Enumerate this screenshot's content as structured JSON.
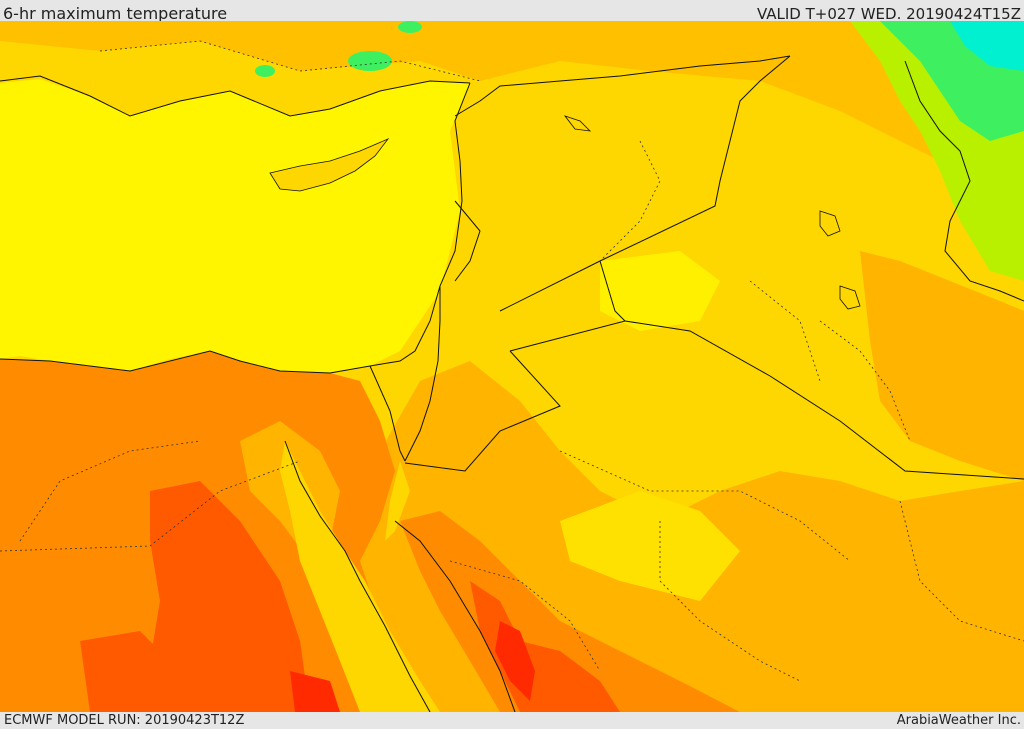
{
  "header": {
    "title": "6-hr maximum temperature",
    "valid_time": "VALID T+027 WED. 20190424T15Z"
  },
  "footer": {
    "model_run": "ECMWF MODEL RUN: 20190423T12Z",
    "credit": "ArabiaWeather Inc."
  },
  "map": {
    "colors": {
      "sea_yellow": "#fff500",
      "light_orange": "#ffd700",
      "mid_orange": "#ffb400",
      "orange": "#ff8c00",
      "dark_orange": "#ff5a00",
      "red": "#ff2a00",
      "green": "#b8f000",
      "bright_green": "#3ef060",
      "cyan": "#00f0d0",
      "border_color": "#111111"
    }
  }
}
